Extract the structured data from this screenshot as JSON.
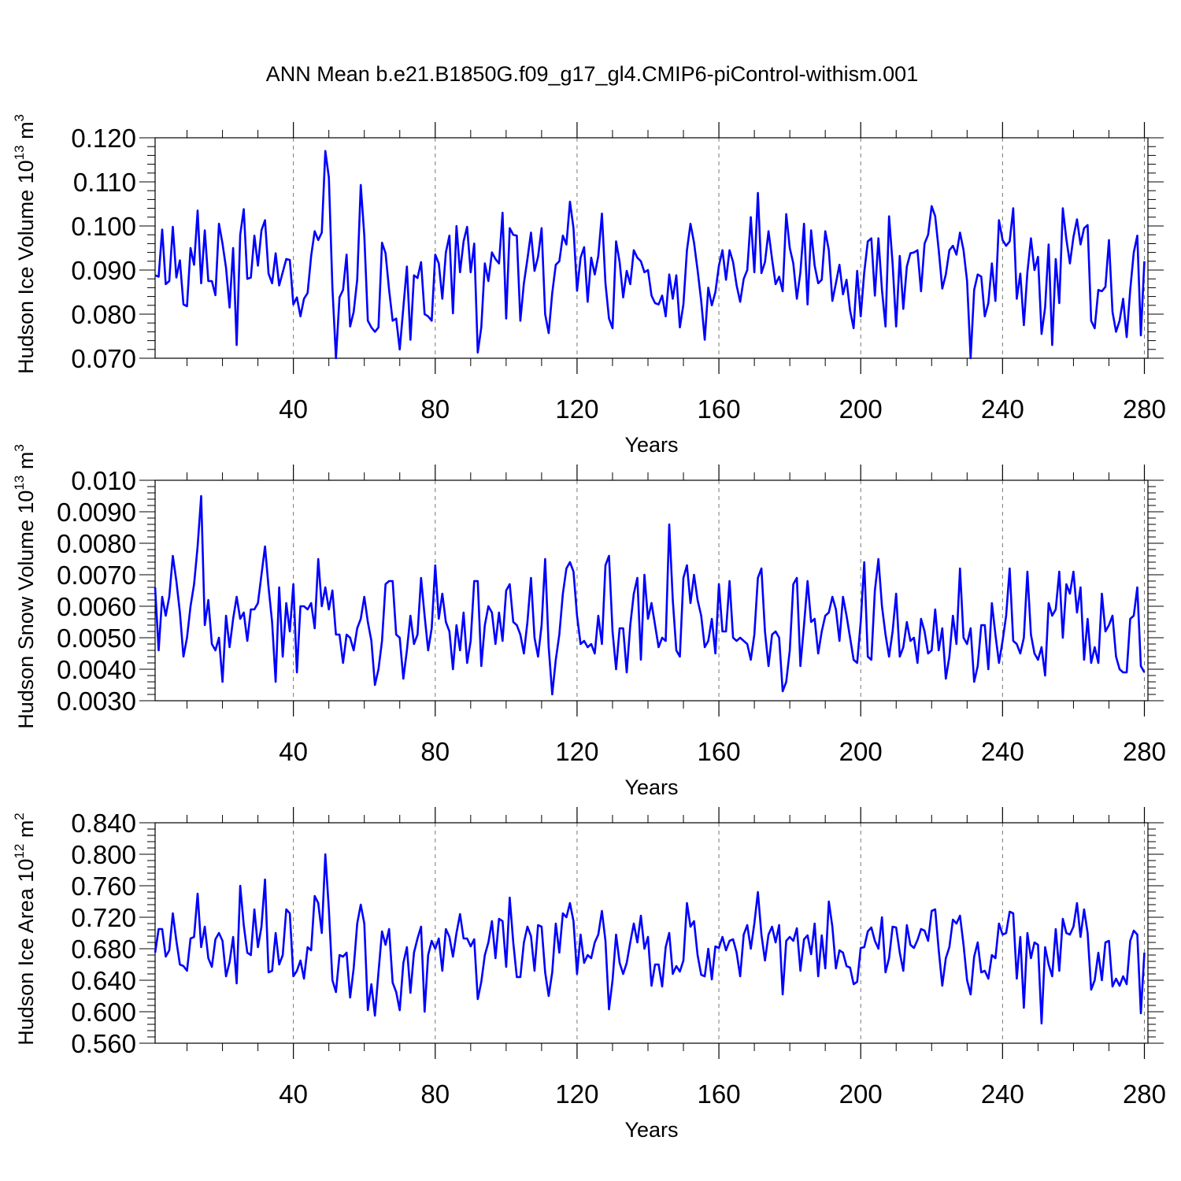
{
  "title": "ANN Mean b.e21.B1850G.f09_g17_gl4.CMIP6-piControl-withism.001",
  "chart_data": [
    {
      "type": "line",
      "ylabel": {
        "text": "Hudson Ice Volume 10",
        "exp": "13",
        "unit": " m",
        "unit_exp": "3"
      },
      "xlabel": "Years",
      "xlim": [
        1,
        281
      ],
      "ylim": [
        0.07,
        0.12
      ],
      "xticks": [
        40,
        80,
        120,
        160,
        200,
        240,
        280
      ],
      "xtick_labels": [
        "40",
        "80",
        "120",
        "160",
        "200",
        "240",
        "280"
      ],
      "yticks": [
        0.07,
        0.08,
        0.09,
        0.1,
        0.11,
        0.12
      ],
      "ytick_labels": [
        "0.070",
        "0.080",
        "0.090",
        "0.100",
        "0.110",
        "0.120"
      ],
      "grid": "dashed vertical at x ticks",
      "color": "#0000ff",
      "x_start": 1,
      "values": [
        0.0888,
        0.0885,
        0.0992,
        0.0868,
        0.0875,
        0.0998,
        0.0883,
        0.0922,
        0.0822,
        0.0818,
        0.095,
        0.0912,
        0.1035,
        0.087,
        0.099,
        0.0875,
        0.0875,
        0.0843,
        0.1005,
        0.096,
        0.0905,
        0.0815,
        0.095,
        0.073,
        0.098,
        0.1038,
        0.088,
        0.0883,
        0.0978,
        0.091,
        0.099,
        0.1013,
        0.0892,
        0.087,
        0.0938,
        0.0865,
        0.0895,
        0.0925,
        0.0923,
        0.0822,
        0.0838,
        0.0795,
        0.0835,
        0.0848,
        0.0932,
        0.0988,
        0.0968,
        0.0985,
        0.117,
        0.111,
        0.086,
        0.07,
        0.0838,
        0.0855,
        0.0935,
        0.0772,
        0.0805,
        0.0878,
        0.1093,
        0.0978,
        0.0785,
        0.077,
        0.076,
        0.077,
        0.0962,
        0.0938,
        0.0855,
        0.0785,
        0.079,
        0.072,
        0.0815,
        0.0908,
        0.0742,
        0.0888,
        0.0882,
        0.0918,
        0.08,
        0.0795,
        0.0785,
        0.0935,
        0.0915,
        0.0835,
        0.094,
        0.0978,
        0.0802,
        0.1,
        0.0895,
        0.0965,
        0.0998,
        0.0895,
        0.096,
        0.0713,
        0.077,
        0.0915,
        0.0875,
        0.094,
        0.0925,
        0.0915,
        0.103,
        0.079,
        0.0995,
        0.098,
        0.0978,
        0.0785,
        0.087,
        0.0925,
        0.0985,
        0.0898,
        0.093,
        0.0995,
        0.08,
        0.0757,
        0.0848,
        0.0912,
        0.092,
        0.0978,
        0.0958,
        0.1055,
        0.0995,
        0.0853,
        0.0928,
        0.0952,
        0.0828,
        0.0928,
        0.089,
        0.0932,
        0.1028,
        0.087,
        0.079,
        0.0768,
        0.0965,
        0.0918,
        0.0838,
        0.0898,
        0.0868,
        0.0945,
        0.0928,
        0.092,
        0.0895,
        0.09,
        0.0842,
        0.0825,
        0.0822,
        0.0842,
        0.0795,
        0.089,
        0.0835,
        0.0888,
        0.077,
        0.0822,
        0.0945,
        0.1005,
        0.0962,
        0.09,
        0.083,
        0.0742,
        0.086,
        0.082,
        0.085,
        0.091,
        0.0945,
        0.0878,
        0.0945,
        0.0918,
        0.0865,
        0.0828,
        0.088,
        0.09,
        0.102,
        0.0895,
        0.1075,
        0.0893,
        0.0918,
        0.0988,
        0.0925,
        0.0868,
        0.0885,
        0.0852,
        0.1027,
        0.095,
        0.0915,
        0.0835,
        0.0895,
        0.1005,
        0.0822,
        0.099,
        0.091,
        0.087,
        0.0878,
        0.0988,
        0.0945,
        0.083,
        0.087,
        0.0912,
        0.0845,
        0.0878,
        0.0808,
        0.0768,
        0.0898,
        0.0795,
        0.0895,
        0.0965,
        0.0972,
        0.0842,
        0.0972,
        0.0855,
        0.0772,
        0.1022,
        0.0915,
        0.0772,
        0.0932,
        0.0812,
        0.0908,
        0.0938,
        0.094,
        0.0945,
        0.0852,
        0.096,
        0.098,
        0.1045,
        0.1022,
        0.0945,
        0.0858,
        0.089,
        0.0945,
        0.0955,
        0.0935,
        0.0985,
        0.0945,
        0.0875,
        0.07,
        0.0855,
        0.089,
        0.0885,
        0.0795,
        0.0825,
        0.0915,
        0.083,
        0.1013,
        0.0968,
        0.0955,
        0.0965,
        0.104,
        0.0835,
        0.0892,
        0.0775,
        0.0895,
        0.0972,
        0.09,
        0.093,
        0.0755,
        0.0815,
        0.0958,
        0.073,
        0.0925,
        0.0825,
        0.104,
        0.097,
        0.0915,
        0.0975,
        0.1015,
        0.0958,
        0.0995,
        0.1002,
        0.0785,
        0.0768,
        0.0855,
        0.0852,
        0.0862,
        0.0968,
        0.0805,
        0.076,
        0.0785,
        0.0835,
        0.0748,
        0.0855,
        0.094,
        0.0978,
        0.0752,
        0.092
      ]
    },
    {
      "type": "line",
      "ylabel": {
        "text": "Hudson Snow Volume 10",
        "exp": "13",
        "unit": " m",
        "unit_exp": "3"
      },
      "xlabel": "Years",
      "xlim": [
        1,
        281
      ],
      "ylim": [
        0.003,
        0.01
      ],
      "xticks": [
        40,
        80,
        120,
        160,
        200,
        240,
        280
      ],
      "xtick_labels": [
        "40",
        "80",
        "120",
        "160",
        "200",
        "240",
        "280"
      ],
      "yticks": [
        0.003,
        0.004,
        0.005,
        0.006,
        0.007,
        0.008,
        0.009,
        0.01
      ],
      "ytick_labels": [
        "0.0030",
        "0.0040",
        "0.0050",
        "0.0060",
        "0.0070",
        "0.0080",
        "0.0090",
        "0.010"
      ],
      "grid": "dashed vertical at x ticks",
      "color": "#0000ff",
      "x_start": 1,
      "values": [
        0.0066,
        0.0046,
        0.0063,
        0.0057,
        0.0063,
        0.0076,
        0.0068,
        0.0058,
        0.0044,
        0.005,
        0.006,
        0.0067,
        0.0079,
        0.0095,
        0.0054,
        0.0062,
        0.0048,
        0.0046,
        0.005,
        0.0036,
        0.0057,
        0.0047,
        0.0056,
        0.0063,
        0.0056,
        0.0058,
        0.0049,
        0.0059,
        0.0059,
        0.0061,
        0.007,
        0.0079,
        0.0066,
        0.0055,
        0.0036,
        0.0066,
        0.0044,
        0.0061,
        0.0052,
        0.0067,
        0.0039,
        0.006,
        0.006,
        0.0059,
        0.0061,
        0.0053,
        0.0075,
        0.006,
        0.0066,
        0.0059,
        0.0065,
        0.0051,
        0.0051,
        0.0042,
        0.0051,
        0.005,
        0.0046,
        0.0053,
        0.0056,
        0.0063,
        0.0055,
        0.0049,
        0.0035,
        0.004,
        0.0049,
        0.0067,
        0.0068,
        0.0068,
        0.0051,
        0.005,
        0.0037,
        0.0046,
        0.0057,
        0.0048,
        0.0051,
        0.0069,
        0.0057,
        0.0046,
        0.0053,
        0.0073,
        0.0056,
        0.0064,
        0.0055,
        0.0052,
        0.004,
        0.0054,
        0.0046,
        0.0058,
        0.0042,
        0.0049,
        0.0068,
        0.0068,
        0.0041,
        0.0054,
        0.006,
        0.0058,
        0.0048,
        0.0058,
        0.0049,
        0.0065,
        0.0067,
        0.0055,
        0.0054,
        0.0051,
        0.0045,
        0.0055,
        0.0069,
        0.005,
        0.0044,
        0.0054,
        0.0075,
        0.0047,
        0.0032,
        0.0043,
        0.0051,
        0.0064,
        0.0072,
        0.0074,
        0.0071,
        0.0057,
        0.0048,
        0.0049,
        0.0047,
        0.0048,
        0.0045,
        0.0057,
        0.0048,
        0.0073,
        0.0076,
        0.0052,
        0.004,
        0.0053,
        0.0053,
        0.0039,
        0.0054,
        0.0064,
        0.0069,
        0.0043,
        0.007,
        0.0056,
        0.0061,
        0.0054,
        0.0047,
        0.005,
        0.0049,
        0.0086,
        0.0062,
        0.0046,
        0.0044,
        0.0069,
        0.0073,
        0.0061,
        0.007,
        0.0062,
        0.0057,
        0.0047,
        0.0049,
        0.0056,
        0.0045,
        0.0067,
        0.0052,
        0.0052,
        0.0068,
        0.005,
        0.0049,
        0.005,
        0.0049,
        0.0048,
        0.0043,
        0.0051,
        0.0069,
        0.0072,
        0.0052,
        0.0041,
        0.0051,
        0.0052,
        0.005,
        0.0033,
        0.0036,
        0.0046,
        0.0067,
        0.0069,
        0.0041,
        0.0054,
        0.0068,
        0.0055,
        0.0056,
        0.0045,
        0.0052,
        0.0057,
        0.0058,
        0.0063,
        0.0059,
        0.0049,
        0.0063,
        0.0057,
        0.005,
        0.0043,
        0.0042,
        0.0055,
        0.0074,
        0.0044,
        0.0043,
        0.0065,
        0.0075,
        0.006,
        0.0051,
        0.0044,
        0.0052,
        0.0064,
        0.0044,
        0.0047,
        0.0055,
        0.0049,
        0.005,
        0.0042,
        0.0056,
        0.0052,
        0.0045,
        0.0046,
        0.0059,
        0.0046,
        0.0053,
        0.0037,
        0.0044,
        0.0057,
        0.0048,
        0.0072,
        0.005,
        0.0048,
        0.0053,
        0.0036,
        0.0041,
        0.0054,
        0.0054,
        0.004,
        0.0061,
        0.0051,
        0.0042,
        0.0049,
        0.0057,
        0.0072,
        0.0049,
        0.0048,
        0.0045,
        0.005,
        0.0071,
        0.0051,
        0.0045,
        0.0043,
        0.0047,
        0.0038,
        0.0061,
        0.0057,
        0.0059,
        0.0071,
        0.005,
        0.0067,
        0.0064,
        0.0071,
        0.0058,
        0.0066,
        0.0043,
        0.0056,
        0.0042,
        0.0047,
        0.0042,
        0.0064,
        0.0052,
        0.0054,
        0.0057,
        0.0044,
        0.004,
        0.0039,
        0.0039,
        0.0056,
        0.0057,
        0.0066,
        0.0041,
        0.0039
      ]
    },
    {
      "type": "line",
      "ylabel": {
        "text": "Hudson Ice Area 10",
        "exp": "12",
        "unit": " m",
        "unit_exp": "2"
      },
      "xlabel": "Years",
      "xlim": [
        1,
        281
      ],
      "ylim": [
        0.56,
        0.84
      ],
      "xticks": [
        40,
        80,
        120,
        160,
        200,
        240,
        280
      ],
      "xtick_labels": [
        "40",
        "80",
        "120",
        "160",
        "200",
        "240",
        "280"
      ],
      "yticks": [
        0.56,
        0.6,
        0.64,
        0.68,
        0.72,
        0.76,
        0.8,
        0.84
      ],
      "ytick_labels": [
        "0.560",
        "0.600",
        "0.640",
        "0.680",
        "0.720",
        "0.760",
        "0.800",
        "0.840"
      ],
      "grid": "dashed vertical at x ticks",
      "color": "#0000ff",
      "x_start": 1,
      "values": [
        0.675,
        0.705,
        0.705,
        0.67,
        0.678,
        0.725,
        0.69,
        0.66,
        0.658,
        0.652,
        0.693,
        0.695,
        0.75,
        0.682,
        0.708,
        0.668,
        0.657,
        0.692,
        0.7,
        0.69,
        0.645,
        0.663,
        0.695,
        0.636,
        0.76,
        0.71,
        0.675,
        0.672,
        0.73,
        0.682,
        0.708,
        0.768,
        0.65,
        0.652,
        0.7,
        0.66,
        0.672,
        0.73,
        0.725,
        0.645,
        0.652,
        0.665,
        0.642,
        0.682,
        0.678,
        0.747,
        0.738,
        0.7,
        0.8,
        0.73,
        0.64,
        0.625,
        0.672,
        0.67,
        0.675,
        0.618,
        0.655,
        0.712,
        0.736,
        0.712,
        0.602,
        0.635,
        0.595,
        0.65,
        0.702,
        0.685,
        0.705,
        0.637,
        0.625,
        0.602,
        0.662,
        0.682,
        0.624,
        0.675,
        0.693,
        0.708,
        0.6,
        0.672,
        0.69,
        0.68,
        0.693,
        0.652,
        0.705,
        0.695,
        0.67,
        0.7,
        0.724,
        0.693,
        0.693,
        0.683,
        0.692,
        0.616,
        0.638,
        0.672,
        0.688,
        0.715,
        0.668,
        0.718,
        0.715,
        0.657,
        0.745,
        0.688,
        0.644,
        0.644,
        0.688,
        0.708,
        0.696,
        0.652,
        0.71,
        0.708,
        0.65,
        0.62,
        0.65,
        0.712,
        0.675,
        0.725,
        0.72,
        0.738,
        0.715,
        0.648,
        0.698,
        0.662,
        0.672,
        0.668,
        0.688,
        0.698,
        0.728,
        0.69,
        0.603,
        0.64,
        0.698,
        0.662,
        0.648,
        0.662,
        0.688,
        0.712,
        0.688,
        0.722,
        0.68,
        0.695,
        0.633,
        0.66,
        0.66,
        0.632,
        0.682,
        0.7,
        0.648,
        0.658,
        0.651,
        0.665,
        0.738,
        0.708,
        0.715,
        0.672,
        0.647,
        0.645,
        0.68,
        0.641,
        0.683,
        0.681,
        0.695,
        0.678,
        0.69,
        0.692,
        0.675,
        0.645,
        0.698,
        0.71,
        0.68,
        0.712,
        0.752,
        0.698,
        0.665,
        0.698,
        0.708,
        0.688,
        0.71,
        0.622,
        0.69,
        0.695,
        0.69,
        0.706,
        0.652,
        0.692,
        0.697,
        0.673,
        0.712,
        0.645,
        0.697,
        0.655,
        0.74,
        0.708,
        0.655,
        0.678,
        0.675,
        0.658,
        0.656,
        0.635,
        0.638,
        0.681,
        0.682,
        0.702,
        0.707,
        0.69,
        0.68,
        0.72,
        0.65,
        0.668,
        0.708,
        0.707,
        0.675,
        0.652,
        0.71,
        0.685,
        0.681,
        0.691,
        0.705,
        0.703,
        0.69,
        0.728,
        0.73,
        0.678,
        0.633,
        0.668,
        0.682,
        0.717,
        0.712,
        0.722,
        0.685,
        0.64,
        0.622,
        0.67,
        0.688,
        0.65,
        0.652,
        0.642,
        0.672,
        0.668,
        0.712,
        0.698,
        0.7,
        0.727,
        0.725,
        0.642,
        0.695,
        0.605,
        0.7,
        0.668,
        0.688,
        0.685,
        0.585,
        0.682,
        0.66,
        0.645,
        0.705,
        0.652,
        0.718,
        0.7,
        0.698,
        0.708,
        0.738,
        0.695,
        0.73,
        0.7,
        0.628,
        0.64,
        0.675,
        0.64,
        0.688,
        0.69,
        0.632,
        0.642,
        0.633,
        0.645,
        0.635,
        0.69,
        0.703,
        0.698,
        0.598,
        0.675
      ]
    }
  ]
}
